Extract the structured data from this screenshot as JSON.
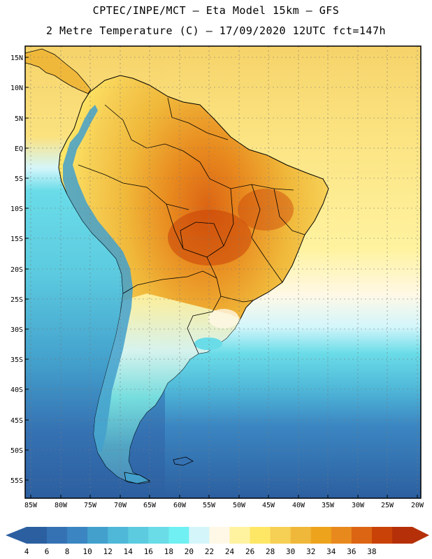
{
  "header": {
    "line1": "CPTEC/INPE/MCT –  Eta Model 15km – GFS",
    "line2": "2 Metre Temperature (C) – 17/09/2020 12UTC fct=147h"
  },
  "axes": {
    "lat_labels": [
      "15N",
      "10N",
      "5N",
      "EQ",
      "5S",
      "10S",
      "15S",
      "20S",
      "25S",
      "30S",
      "35S",
      "40S",
      "45S",
      "50S",
      "55S"
    ],
    "lon_labels": [
      "85W",
      "80W",
      "75W",
      "70W",
      "65W",
      "60W",
      "55W",
      "50W",
      "45W",
      "40W",
      "35W",
      "30W",
      "25W",
      "20W"
    ]
  },
  "colorbar": {
    "labels": [
      "4",
      "6",
      "8",
      "10",
      "12",
      "14",
      "16",
      "18",
      "20",
      "22",
      "24",
      "26",
      "28",
      "30",
      "32",
      "34",
      "36",
      "38"
    ],
    "colors": [
      "#2c5fa0",
      "#3572b3",
      "#3b86c2",
      "#43a0cc",
      "#4fb7d8",
      "#5ccbe0",
      "#6adce8",
      "#70f0f2",
      "#d4f6fb",
      "#fff8e6",
      "#fff3a0",
      "#ffe766",
      "#f6cf55",
      "#f0b83a",
      "#eda31c",
      "#e8891e",
      "#dc6514",
      "#c94208",
      "#b53008"
    ]
  },
  "colors": {
    "ocean_warm": "#fff3a0",
    "ocean_mid": "#5ccbe0",
    "ocean_cold": "#2c5fa0",
    "land_hot": "#e8891e",
    "land_warm": "#f0b83a",
    "andes": "#4fb7d8"
  }
}
